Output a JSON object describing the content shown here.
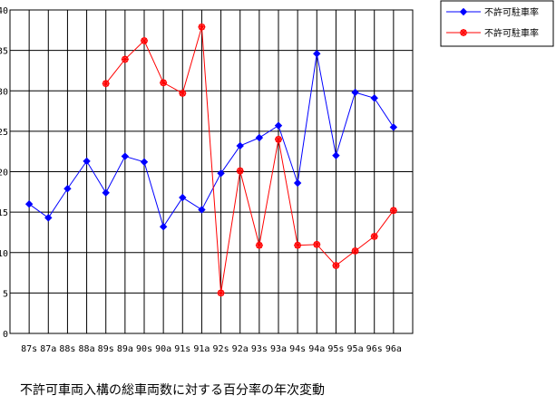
{
  "chart_data": {
    "type": "line",
    "title": "",
    "caption": "不許可車両入構の総車両数に対する百分率の年次変動",
    "xlabel": "",
    "ylabel": "",
    "ylim": [
      0,
      40
    ],
    "yticks": [
      0,
      5,
      10,
      15,
      20,
      25,
      30,
      35,
      40
    ],
    "grid": true,
    "legend_position": "top-right",
    "categories": [
      "87s",
      "87a",
      "88s",
      "88a",
      "89s",
      "89a",
      "90s",
      "90a",
      "91s",
      "91a",
      "92s",
      "92a",
      "93s",
      "93a",
      "94s",
      "94a",
      "95s",
      "95a",
      "96s",
      "96a"
    ],
    "series": [
      {
        "name": "不許可駐車率",
        "color": "#0000ff",
        "marker": "diamond",
        "values": [
          16.0,
          14.3,
          17.9,
          21.3,
          17.4,
          21.9,
          21.2,
          13.2,
          16.8,
          15.3,
          19.8,
          23.2,
          24.2,
          25.7,
          18.6,
          34.6,
          22.0,
          29.8,
          29.1,
          25.5
        ]
      },
      {
        "name": "不許可駐車率",
        "color": "#ff0000",
        "marker": "asterisk",
        "values": [
          null,
          null,
          null,
          null,
          30.9,
          33.9,
          36.2,
          31.0,
          29.7,
          37.9,
          5.0,
          20.1,
          10.9,
          24.0,
          10.9,
          11.0,
          8.4,
          10.2,
          12.0,
          15.2
        ]
      }
    ]
  }
}
